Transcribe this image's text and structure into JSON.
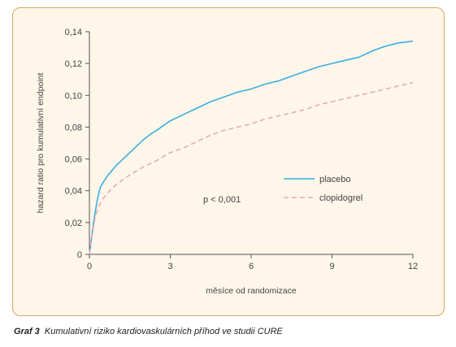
{
  "caption": {
    "label": "Graf 3",
    "text": "Kumulativní riziko kardiovaskulárních příhod ve studii CURE"
  },
  "annotation": "p < 0,001",
  "colors": {
    "placebo": "#3aaee0",
    "clopidogrel": "#eaaab5",
    "panel_bg": "#fdf6e9",
    "panel_border": "#d8a85a"
  },
  "chart_data": {
    "type": "line",
    "xlabel": "měsíce od randomizace",
    "ylabel": "hazard ratio pro kumulativní endpoint",
    "xlim": [
      0,
      12
    ],
    "ylim": [
      0,
      0.14
    ],
    "xticks": [
      0,
      3,
      6,
      9,
      12
    ],
    "xtick_labels": [
      "0",
      "3",
      "6",
      "9",
      "12"
    ],
    "yticks": [
      0,
      0.02,
      0.04,
      0.06,
      0.08,
      0.1,
      0.12,
      0.14
    ],
    "ytick_labels": [
      "0",
      "0,02",
      "0,04",
      "0,06",
      "0,08",
      "0,10",
      "0,12",
      "0,14"
    ],
    "grid": false,
    "legend_position": "right-middle",
    "series": [
      {
        "name": "placebo",
        "style": "solid",
        "x": [
          0,
          0.1,
          0.2,
          0.3,
          0.4,
          0.5,
          0.7,
          1.0,
          1.5,
          2.0,
          2.3,
          2.5,
          3.0,
          3.5,
          4.0,
          4.5,
          5.0,
          5.5,
          6.0,
          6.5,
          7.0,
          7.5,
          8.0,
          8.5,
          9.0,
          9.5,
          10.0,
          10.5,
          11.0,
          11.5,
          12.0
        ],
        "y": [
          0,
          0.013,
          0.025,
          0.035,
          0.042,
          0.045,
          0.05,
          0.056,
          0.064,
          0.072,
          0.076,
          0.078,
          0.084,
          0.088,
          0.092,
          0.096,
          0.099,
          0.102,
          0.104,
          0.107,
          0.109,
          0.112,
          0.115,
          0.118,
          0.12,
          0.122,
          0.124,
          0.128,
          0.131,
          0.133,
          0.134
        ]
      },
      {
        "name": "clopidogrel",
        "style": "dashed",
        "x": [
          0,
          0.1,
          0.2,
          0.3,
          0.4,
          0.5,
          0.7,
          1.0,
          1.5,
          2.0,
          2.5,
          3.0,
          3.5,
          4.0,
          4.5,
          5.0,
          5.5,
          6.0,
          6.5,
          7.0,
          7.5,
          8.0,
          8.5,
          9.0,
          9.5,
          10.0,
          10.5,
          11.0,
          11.5,
          12.0
        ],
        "y": [
          0,
          0.012,
          0.022,
          0.028,
          0.032,
          0.035,
          0.039,
          0.044,
          0.05,
          0.055,
          0.059,
          0.064,
          0.067,
          0.071,
          0.075,
          0.078,
          0.08,
          0.082,
          0.085,
          0.087,
          0.089,
          0.091,
          0.094,
          0.096,
          0.098,
          0.1,
          0.102,
          0.104,
          0.106,
          0.108
        ]
      }
    ]
  }
}
